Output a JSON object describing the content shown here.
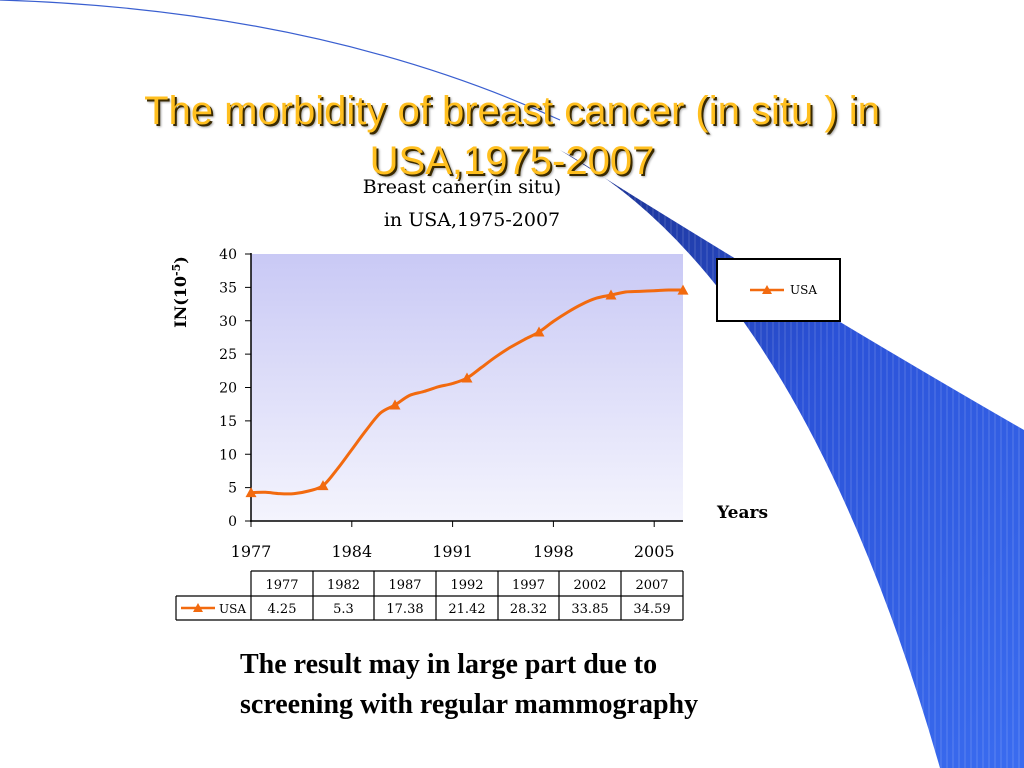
{
  "slide": {
    "title": "The morbidity of breast cancer (in situ )  in USA,1975-2007",
    "caption_line1": "The result may in large part due to",
    "caption_line2": "screening with regular mammography"
  },
  "colors": {
    "title": "#ffbf1f",
    "series": "#f26a0f",
    "plot_bg_top": "#c9c9f5",
    "plot_bg_bottom": "#f4f4fd",
    "decor_blue": "#2f5fe6"
  },
  "chart_data": {
    "type": "line",
    "title_line1": "Breast caner(in situ)",
    "title_line2": "in USA,1975-2007",
    "ylabel": "IN(10",
    "ylabel_exp": "-5",
    "ylabel_close": ")",
    "xlabel": "Years",
    "ylim": [
      0,
      40
    ],
    "yticks": [
      0,
      5,
      10,
      15,
      20,
      25,
      30,
      35,
      40
    ],
    "xlim": [
      1977,
      2007
    ],
    "xticks": [
      1977,
      1984,
      1991,
      1998,
      2005
    ],
    "legend_position": "right",
    "series": [
      {
        "name": "USA",
        "curve_x": [
          1977,
          1978,
          1979,
          1980,
          1981,
          1982,
          1983,
          1984,
          1985,
          1986,
          1987,
          1988,
          1989,
          1990,
          1991,
          1992,
          1993,
          1994,
          1995,
          1996,
          1997,
          1998,
          1999,
          2000,
          2001,
          2002,
          2003,
          2004,
          2005,
          2006,
          2007
        ],
        "curve_y": [
          4.25,
          4.3,
          4.1,
          4.1,
          4.5,
          5.3,
          7.8,
          10.7,
          13.6,
          16.2,
          17.38,
          18.8,
          19.4,
          20.1,
          20.6,
          21.42,
          23.0,
          24.6,
          26.0,
          27.2,
          28.32,
          29.9,
          31.3,
          32.5,
          33.4,
          33.85,
          34.3,
          34.4,
          34.5,
          34.6,
          34.59
        ],
        "marker_x": [
          1977,
          1982,
          1987,
          1992,
          1997,
          2002,
          2007
        ],
        "marker_y": [
          4.25,
          5.3,
          17.38,
          21.42,
          28.32,
          33.85,
          34.59
        ]
      }
    ],
    "table": {
      "years": [
        "1977",
        "1982",
        "1987",
        "1992",
        "1997",
        "2002",
        "2007"
      ],
      "row_label": "USA",
      "values": [
        "4.25",
        "5.3",
        "17.38",
        "21.42",
        "28.32",
        "33.85",
        "34.59"
      ]
    }
  }
}
